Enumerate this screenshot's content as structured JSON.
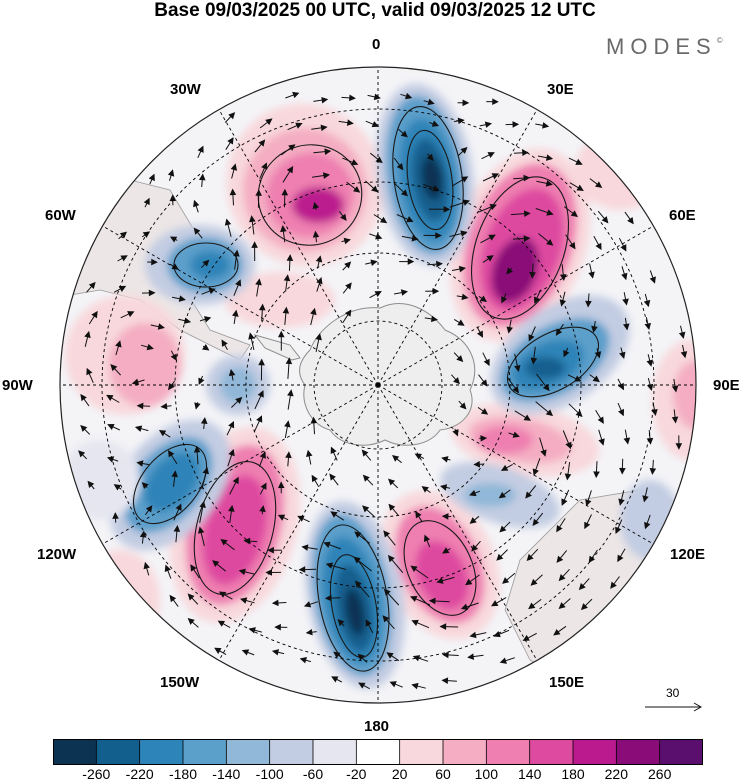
{
  "title": "Base 09/03/2025 00 UTC, valid 09/03/2025 12 UTC",
  "brand": {
    "name": "MODES",
    "mark": "©"
  },
  "longitude_labels": {
    "lon_0": "0",
    "lon_30e": "30E",
    "lon_60e": "60E",
    "lon_90e": "90E",
    "lon_120e": "120E",
    "lon_150e": "150E",
    "lon_180": "180",
    "lon_150w": "150W",
    "lon_120w": "120W",
    "lon_90w": "90W",
    "lon_60w": "60W",
    "lon_30w": "30W"
  },
  "vector_scale": {
    "label": "30"
  },
  "colorbar": {
    "ticks": [
      "-260",
      "-220",
      "-180",
      "-140",
      "-100",
      "-60",
      "-20",
      "20",
      "60",
      "100",
      "140",
      "180",
      "220",
      "260"
    ],
    "colors": [
      "#0d3352",
      "#125f8e",
      "#2d84b8",
      "#5b9fcb",
      "#91b8d8",
      "#c2cce2",
      "#e6e6f0",
      "#ffffff",
      "#f8d8dc",
      "#f4adc3",
      "#ee7fb0",
      "#de4aa0",
      "#bb1a8e",
      "#8a0c78",
      "#5a0f6e"
    ]
  },
  "colors": {
    "land": "#eeeeee",
    "coast": "#8c8c8c",
    "grid": "#000000"
  }
}
